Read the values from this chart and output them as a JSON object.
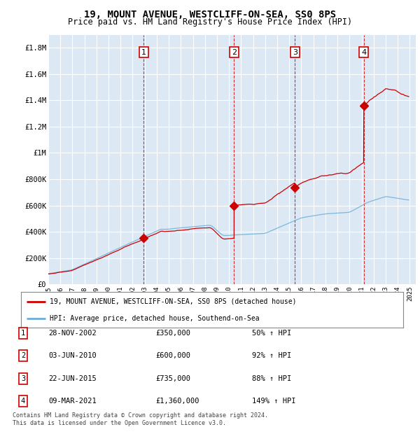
{
  "title": "19, MOUNT AVENUE, WESTCLIFF-ON-SEA, SS0 8PS",
  "subtitle": "Price paid vs. HM Land Registry's House Price Index (HPI)",
  "ylim": [
    0,
    1900000
  ],
  "yticks": [
    0,
    200000,
    400000,
    600000,
    800000,
    1000000,
    1200000,
    1400000,
    1600000,
    1800000
  ],
  "ytick_labels": [
    "£0",
    "£200K",
    "£400K",
    "£600K",
    "£800K",
    "£1M",
    "£1.2M",
    "£1.4M",
    "£1.6M",
    "£1.8M"
  ],
  "background_color": "#dce9f5",
  "grid_color": "#ffffff",
  "purchases": [
    {
      "date": 2002.917,
      "price": 350000,
      "label": "1"
    },
    {
      "date": 2010.42,
      "price": 600000,
      "label": "2"
    },
    {
      "date": 2015.47,
      "price": 735000,
      "label": "3"
    },
    {
      "date": 2021.19,
      "price": 1360000,
      "label": "4"
    }
  ],
  "vline_dates": [
    2002.917,
    2010.42,
    2015.47,
    2021.19
  ],
  "hpi_line_color": "#6baed6",
  "price_line_color": "#cc0000",
  "legend_label_price": "19, MOUNT AVENUE, WESTCLIFF-ON-SEA, SS0 8PS (detached house)",
  "legend_label_hpi": "HPI: Average price, detached house, Southend-on-Sea",
  "table_entries": [
    {
      "num": "1",
      "date": "28-NOV-2002",
      "price": "£350,000",
      "change": "50% ↑ HPI"
    },
    {
      "num": "2",
      "date": "03-JUN-2010",
      "price": "£600,000",
      "change": "92% ↑ HPI"
    },
    {
      "num": "3",
      "date": "22-JUN-2015",
      "price": "£735,000",
      "change": "88% ↑ HPI"
    },
    {
      "num": "4",
      "date": "09-MAR-2021",
      "price": "£1,360,000",
      "change": "149% ↑ HPI"
    }
  ],
  "footer": "Contains HM Land Registry data © Crown copyright and database right 2024.\nThis data is licensed under the Open Government Licence v3.0.",
  "xmin": 1995,
  "xmax": 2025.5
}
